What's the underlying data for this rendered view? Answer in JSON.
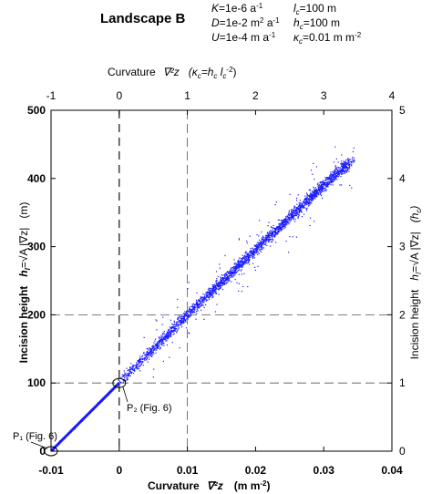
{
  "figure": {
    "title": "Landscape B",
    "params_left": [
      {
        "sym": "K",
        "val": "=1e-6 a",
        "sup": "-1"
      },
      {
        "sym": "D",
        "val": "=1e-2 m",
        "sup": "2",
        "tail": " a",
        "sup2": "-1"
      },
      {
        "sym": "U",
        "val": "=1e-4 m a",
        "sup": "-1"
      }
    ],
    "params_right": [
      {
        "sym": "l",
        "sub": "c",
        "val": "=100 m"
      },
      {
        "sym": "h",
        "sub": "c",
        "val": "=100 m"
      },
      {
        "sym": "κ",
        "sub": "c",
        "val": "=0.01 m m",
        "sup": "-2"
      }
    ]
  },
  "axes_text": {
    "top_title": "Curvature",
    "top_symbol": "∇²z",
    "top_paren": "(κ",
    "top_paren_sub": "c",
    "top_paren_eq": "=h",
    "top_paren_sub2": "c",
    "top_paren_l": " l",
    "top_paren_sub3": "c",
    "top_paren_sup": "-2",
    "top_paren_close": ")",
    "bottom_title": "Curvature",
    "bottom_symbol": "∇²z",
    "bottom_units": "(m m",
    "bottom_units_sup": "-2",
    "bottom_units_close": ")",
    "left_title": "Incision height",
    "left_symbol": "h",
    "left_symbol_sub": "I",
    "left_eq": "=√A |∇z|",
    "left_units": "(m)",
    "right_title": "Incision height",
    "right_symbol": "h",
    "right_symbol_sub": "I",
    "right_eq": "=√A |∇z|",
    "right_units": "(h",
    "right_units_sub": "c",
    "right_units_close": ")"
  },
  "annotations": {
    "p1": "P₁ (Fig. 6)",
    "p2": "P₂ (Fig. 6)"
  },
  "chart_data": {
    "type": "scatter",
    "x_bottom": {
      "ticks": [
        -0.01,
        0,
        0.01,
        0.02,
        0.03,
        0.04
      ],
      "labels": [
        "-0.01",
        "0",
        "0.01",
        "0.02",
        "0.03",
        "0.04"
      ],
      "lim": [
        -0.01,
        0.04
      ]
    },
    "x_top": {
      "ticks": [
        -1,
        0,
        1,
        2,
        3,
        4
      ],
      "labels": [
        "-1",
        "0",
        "1",
        "2",
        "3",
        "4"
      ],
      "lim": [
        -1,
        4
      ]
    },
    "y_left": {
      "ticks": [
        0,
        100,
        200,
        300,
        400,
        500
      ],
      "labels": [
        "0",
        "100",
        "200",
        "300",
        "400",
        "500"
      ],
      "lim": [
        0,
        500
      ]
    },
    "y_right": {
      "ticks": [
        0,
        1,
        2,
        3,
        4,
        5
      ],
      "labels": [
        "0",
        "1",
        "2",
        "3",
        "4",
        "5"
      ],
      "lim": [
        0,
        5
      ]
    },
    "reference_lines": {
      "vertical_dashed_heavy": [
        0
      ],
      "vertical_dashed_light": [
        0.01
      ],
      "horizontal_dashed_light": [
        100,
        200
      ]
    },
    "points": {
      "P1": {
        "x": -0.01,
        "y": 0
      },
      "P2": {
        "x": 0,
        "y": 100
      }
    },
    "cloud": {
      "color": "#1a1aff",
      "trend": [
        [
          -0.01,
          0
        ],
        [
          0,
          100
        ],
        [
          0.01,
          200
        ],
        [
          0.02,
          295
        ],
        [
          0.03,
          390
        ],
        [
          0.037,
          452
        ]
      ]
    },
    "grid": false
  }
}
